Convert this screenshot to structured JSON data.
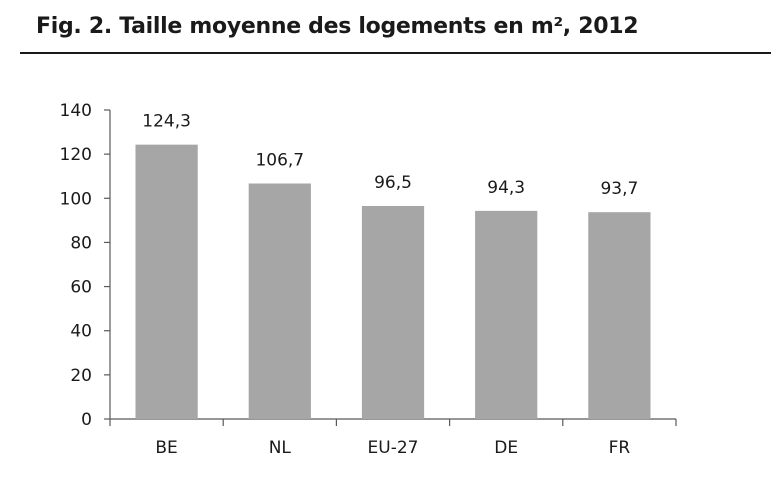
{
  "figure": {
    "title": "Fig. 2. Taille moyenne des logements en m², 2012"
  },
  "colors": {
    "bar": "#a6a6a6",
    "axis": "#595959",
    "text": "#1a1a1a"
  },
  "chart_data": {
    "type": "bar",
    "title": "Fig. 2. Taille moyenne des logements en m², 2012",
    "xlabel": "",
    "ylabel": "",
    "categories": [
      "BE",
      "NL",
      "EU-27",
      "DE",
      "FR"
    ],
    "values": [
      124.3,
      106.7,
      96.5,
      94.3,
      93.7
    ],
    "value_labels": [
      "124,3",
      "106,7",
      "96,5",
      "94,3",
      "93,7"
    ],
    "ylim": [
      0,
      140
    ],
    "yticks": [
      0,
      20,
      40,
      60,
      80,
      100,
      120,
      140
    ],
    "ytick_labels": [
      "0",
      "20",
      "40",
      "60",
      "80",
      "100",
      "120",
      "140"
    ],
    "grid": false,
    "legend": "none"
  }
}
